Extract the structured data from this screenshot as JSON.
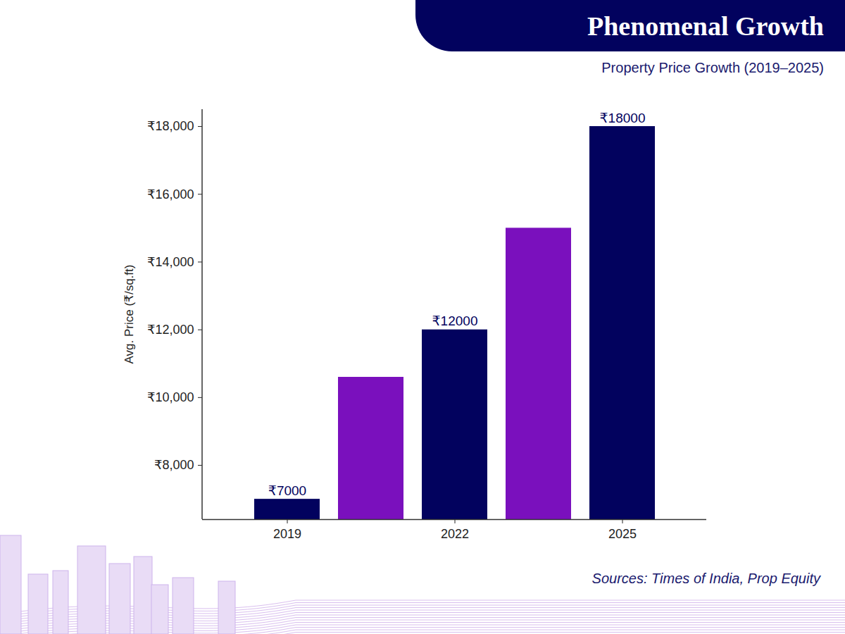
{
  "chart_data": {
    "type": "bar",
    "title": "Phenomenal Growth",
    "subtitle": "Property Price Growth (2019–2025)",
    "y_label": "Avg. Price (₹/sq.ft)",
    "source": "Sources: Times of India, Prop Equity",
    "categories": [
      "2019",
      null,
      "2022",
      null,
      "2025"
    ],
    "values": [
      7000,
      10600,
      12000,
      15000,
      18000
    ],
    "value_labels": [
      "₹7000",
      null,
      "₹12000",
      null,
      "₹18000"
    ],
    "data_labels": true,
    "colors": [
      "#02025e",
      "#7a10bd",
      "#02025e",
      "#7a10bd",
      "#02025e"
    ],
    "ylim": [
      6400,
      18500
    ],
    "yticks": [
      {
        "value": 8000,
        "label": "₹8,000"
      },
      {
        "value": 10000,
        "label": "₹10,000"
      },
      {
        "value": 12000,
        "label": "₹12,000"
      },
      {
        "value": 14000,
        "label": "₹14,000"
      },
      {
        "value": 16000,
        "label": "₹16,000"
      },
      {
        "value": 18000,
        "label": "₹18,000"
      }
    ],
    "grid": false
  }
}
